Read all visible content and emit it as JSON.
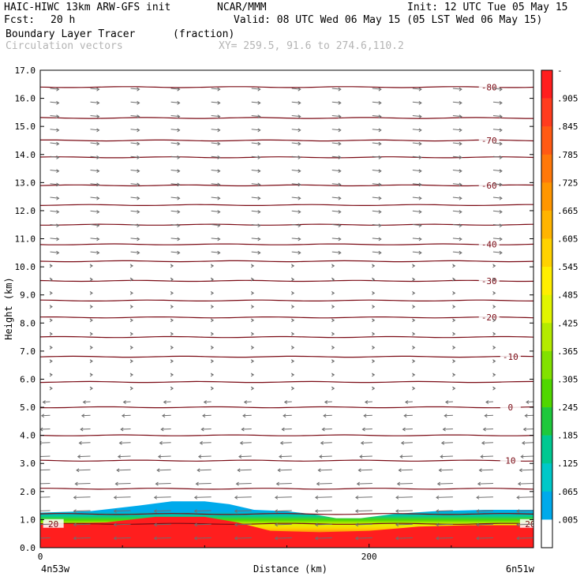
{
  "header": {
    "model": "HAIC-HIWC 13km ARW-GFS init",
    "org": "NCAR/MMM",
    "init": "Init: 12 UTC Tue 05 May 15",
    "fcst_label": "Fcst:",
    "fcst_value": "20 h",
    "valid": "Valid: 08 UTC Wed 06 May 15 (05 LST Wed 06 May 15)",
    "field": "Boundary Layer Tracer",
    "units": "(fraction)",
    "vectors": "Circulation vectors",
    "xy": "XY= 259.5, 91.6 to 274.6,110.2"
  },
  "colors": {
    "contour": "#7a0a14",
    "vector": "#6e6e6e",
    "tracer_high": "#ff1e1e"
  },
  "chart_data": {
    "type": "heatmap",
    "xlabel": "Distance (km)",
    "ylabel": "Height (km)",
    "xlim": [
      0,
      300
    ],
    "ylim": [
      0,
      17
    ],
    "x_ticks": [
      {
        "value": 0,
        "label": "0"
      },
      {
        "value": 200,
        "label": "200"
      }
    ],
    "x_end_labels": {
      "left": "4n53w",
      "right": "6n51w"
    },
    "y_ticks": [
      {
        "value": 0,
        "label": "0.0"
      },
      {
        "value": 1,
        "label": "1.0"
      },
      {
        "value": 2,
        "label": "2.0"
      },
      {
        "value": 3,
        "label": "3.0"
      },
      {
        "value": 4,
        "label": "4.0"
      },
      {
        "value": 5,
        "label": "5.0"
      },
      {
        "value": 6,
        "label": "6.0"
      },
      {
        "value": 7,
        "label": "7.0"
      },
      {
        "value": 8,
        "label": "8.0"
      },
      {
        "value": 9,
        "label": "9.0"
      },
      {
        "value": 10,
        "label": "10.0"
      },
      {
        "value": 11,
        "label": "11.0"
      },
      {
        "value": 12,
        "label": "12.0"
      },
      {
        "value": 13,
        "label": "13.0"
      },
      {
        "value": 14,
        "label": "14.0"
      },
      {
        "value": 15,
        "label": "15.0"
      },
      {
        "value": 16,
        "label": "16.0"
      },
      {
        "value": 17,
        "label": "17.0"
      }
    ],
    "colorbar": {
      "labels": [
        "-",
        ".905",
        ".845",
        ".785",
        ".725",
        ".665",
        ".605",
        ".545",
        ".485",
        ".425",
        ".365",
        ".305",
        ".245",
        ".185",
        ".125",
        ".065",
        ".005"
      ],
      "colors": [
        "#ff1e1e",
        "#ff3c1e",
        "#ff5a14",
        "#ff780a",
        "#ff9600",
        "#ffb400",
        "#ffd200",
        "#ffee00",
        "#e1f500",
        "#b4eb00",
        "#82e100",
        "#50d700",
        "#1ec83c",
        "#00c891",
        "#00c8c8",
        "#00aaeb",
        "#ffffff"
      ]
    },
    "tracer_top_km": [
      [
        0,
        1.25
      ],
      [
        30,
        1.3
      ],
      [
        60,
        1.5
      ],
      [
        80,
        1.65
      ],
      [
        100,
        1.65
      ],
      [
        115,
        1.55
      ],
      [
        130,
        1.35
      ],
      [
        150,
        1.3
      ],
      [
        165,
        1.2
      ],
      [
        180,
        1.05
      ],
      [
        195,
        1.05
      ],
      [
        215,
        1.2
      ],
      [
        240,
        1.3
      ],
      [
        270,
        1.35
      ],
      [
        300,
        1.35
      ]
    ],
    "tracer_core_km": [
      [
        0,
        0.85
      ],
      [
        40,
        0.9
      ],
      [
        70,
        1.1
      ],
      [
        100,
        1.1
      ],
      [
        120,
        0.9
      ],
      [
        140,
        0.6
      ],
      [
        170,
        0.55
      ],
      [
        200,
        0.6
      ],
      [
        230,
        0.75
      ],
      [
        260,
        0.8
      ],
      [
        300,
        0.8
      ]
    ],
    "temperature_contours": [
      {
        "label": "-80",
        "height_km": 16.4,
        "label_x_km": 273
      },
      {
        "label": "-70",
        "height_km": 14.5,
        "label_x_km": 273
      },
      {
        "label": "-60",
        "height_km": 12.9,
        "label_x_km": 273
      },
      {
        "label": "-40",
        "height_km": 10.8,
        "label_x_km": 273
      },
      {
        "label": "-30",
        "height_km": 9.5,
        "label_x_km": 273
      },
      {
        "label": "-20",
        "height_km": 8.2,
        "label_x_km": 273
      },
      {
        "label": "-10",
        "height_km": 6.8,
        "label_x_km": 286
      },
      {
        "label": "0",
        "height_km": 5.0,
        "label_x_km": 286
      },
      {
        "label": "10",
        "height_km": 3.1,
        "label_x_km": 286
      },
      {
        "label": "20",
        "height_km": 0.85,
        "label_x_km": 298
      },
      {
        "label": "20",
        "height_km": 0.85,
        "label_x_km": 8
      }
    ],
    "unlabeled_contour_heights_km": [
      15.3,
      13.9,
      12.2,
      11.5,
      10.2,
      8.8,
      7.5,
      5.9,
      4.0,
      2.1,
      1.2
    ]
  }
}
